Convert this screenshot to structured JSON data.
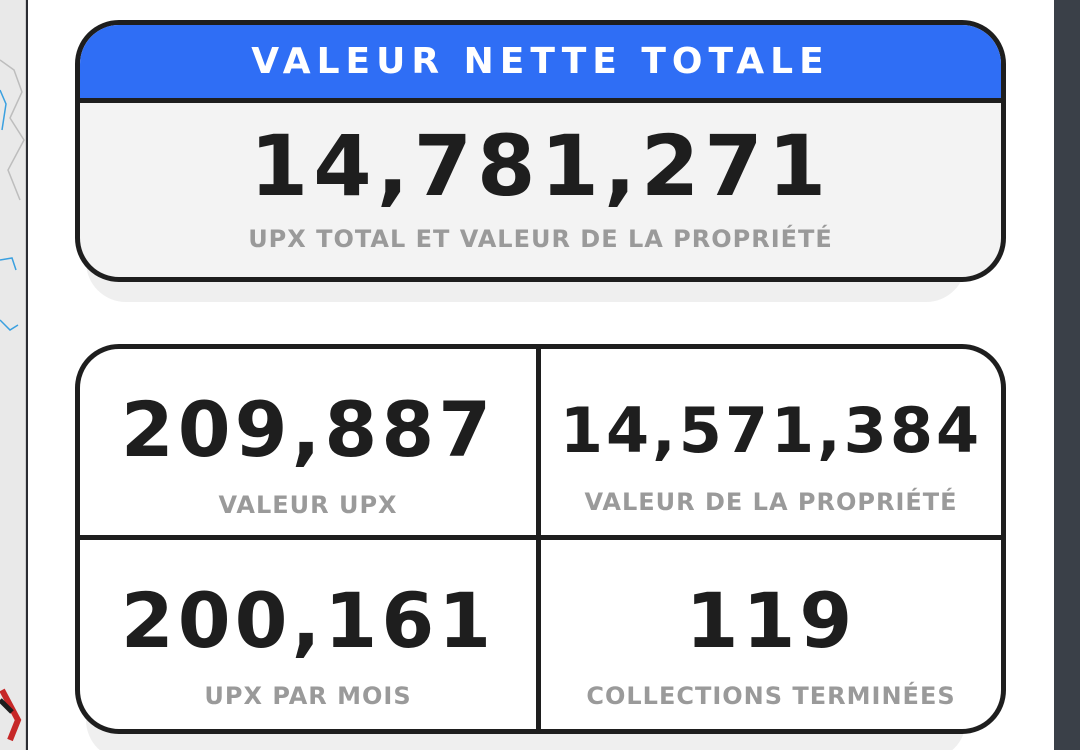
{
  "net_worth": {
    "title": "VALEUR NETTE TOTALE",
    "value": "14,781,271",
    "caption": "UPX TOTAL ET VALEUR DE LA PROPRIÉTÉ"
  },
  "stats": [
    {
      "value": "209,887",
      "label": "VALEUR UPX"
    },
    {
      "value": "14,571,384",
      "label": "VALEUR DE LA PROPRIÉTÉ"
    },
    {
      "value": "200,161",
      "label": "UPX PAR MOIS"
    },
    {
      "value": "119",
      "label": "COLLECTIONS TERMINÉES"
    }
  ],
  "colors": {
    "accent": "#2f6ef5",
    "text_dark": "#1e1e1e",
    "text_muted": "#9a9a9a"
  }
}
